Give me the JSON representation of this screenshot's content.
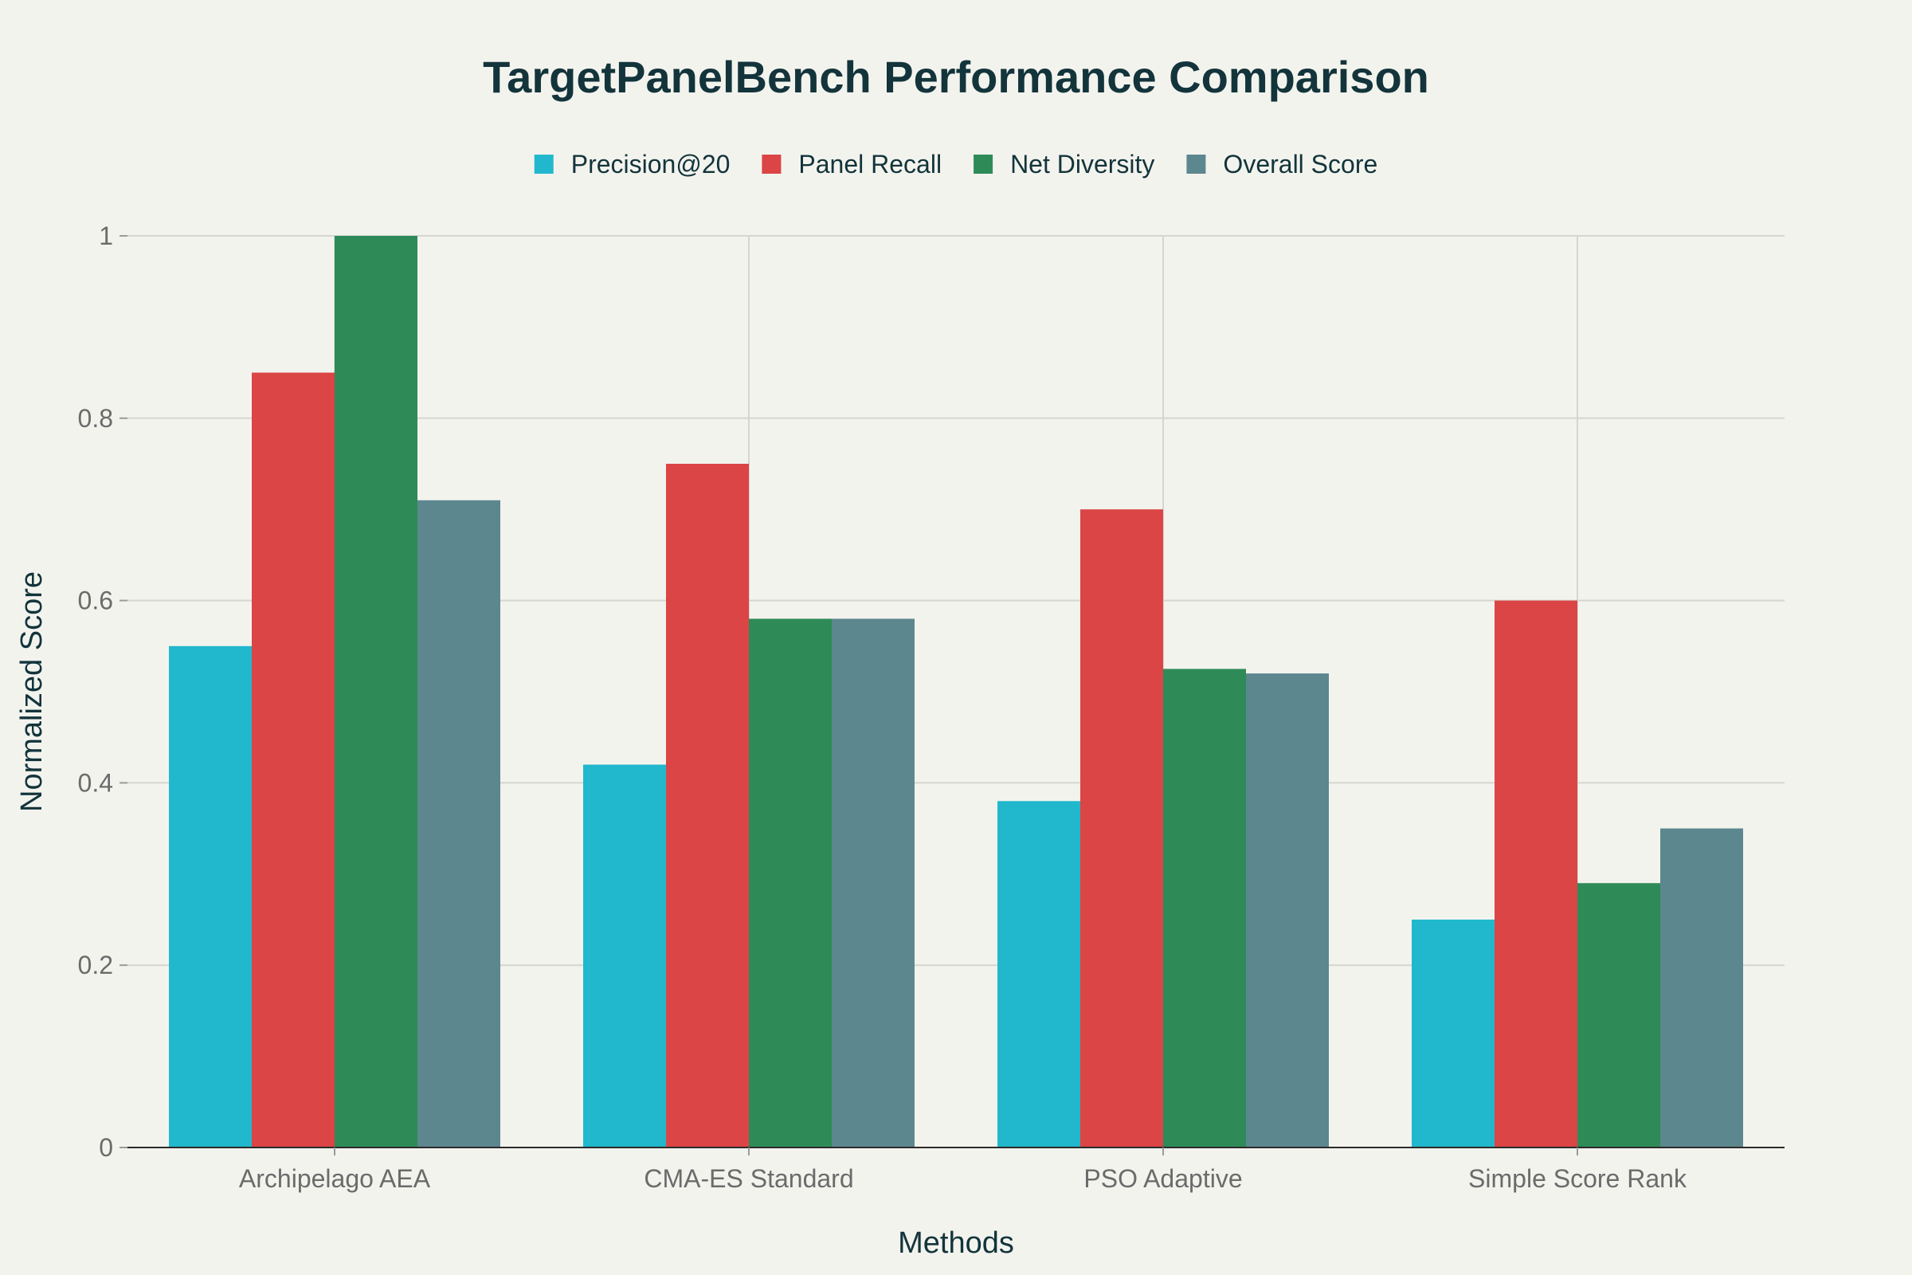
{
  "chart_data": {
    "type": "bar",
    "title": "TargetPanelBench Performance Comparison",
    "xlabel": "Methods",
    "ylabel": "Normalized Score",
    "categories": [
      "Archipelago AEA",
      "CMA-ES Standard",
      "PSO Adaptive",
      "Simple Score Rank"
    ],
    "series": [
      {
        "name": "Precision@20",
        "color": "#21b8cd",
        "values": [
          0.55,
          0.42,
          0.38,
          0.25
        ]
      },
      {
        "name": "Panel Recall",
        "color": "#db4545",
        "values": [
          0.85,
          0.75,
          0.7,
          0.6
        ]
      },
      {
        "name": "Net Diversity",
        "color": "#2e8b57",
        "values": [
          1.0,
          0.58,
          0.525,
          0.29
        ]
      },
      {
        "name": "Overall Score",
        "color": "#5d878f",
        "values": [
          0.71,
          0.58,
          0.52,
          0.35
        ]
      }
    ],
    "ylim": [
      0,
      1
    ],
    "yticks": [
      "0",
      "0.2",
      "0.4",
      "0.6",
      "0.8",
      "1"
    ],
    "ytick_values": [
      0,
      0.2,
      0.4,
      0.6,
      0.8,
      1
    ],
    "grid": true,
    "legend_position": "top-center"
  }
}
